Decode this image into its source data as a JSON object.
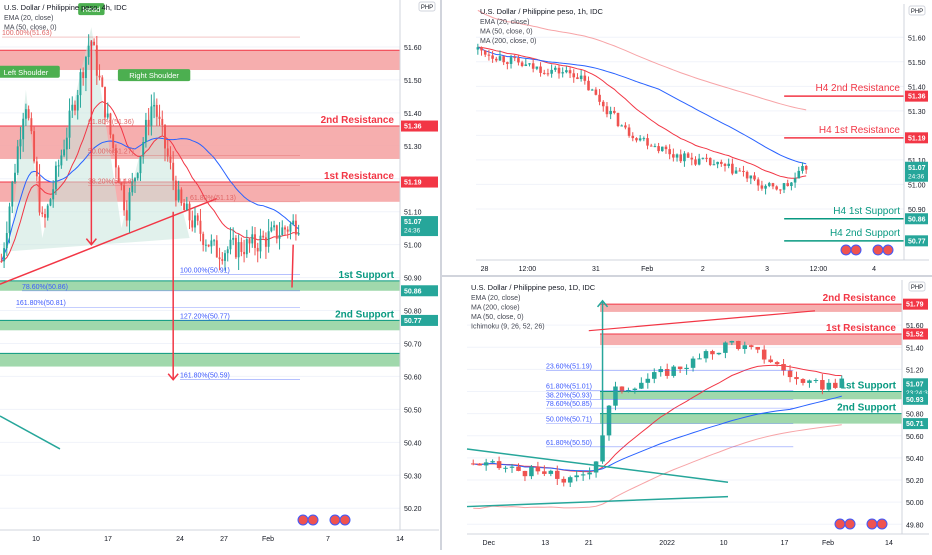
{
  "colors": {
    "up": "#26a69a",
    "down": "#ef5350",
    "ema": "#f23645",
    "ma200": "#f7a4a7",
    "ma50": "#2962ff",
    "resistance_fill": "#f4a0a0",
    "support_fill": "#8fd19e",
    "level_resistance": "#f23645",
    "level_support": "#089981",
    "grid": "#f0f3fa",
    "axis_text": "#131722",
    "fib_red": "#e06666",
    "fib_blue": "#3d5afe",
    "pattern_fill": "#c8e6dc",
    "arrow": "#f23645",
    "label_green": "#4caf50",
    "divider": "#d1d4dc"
  },
  "chart_data": [
    {
      "id": "h4",
      "type": "candlestick",
      "title": "U.S. Dollar / Philippine peso, 4h, IDC",
      "indicators": [
        "EMA (20, close)",
        "MA (50, close, 0)"
      ],
      "price_axis_label": "PHP",
      "ylim": [
        50.14,
        51.7
      ],
      "y_ticks": [
        "51.60",
        "51.50",
        "51.40",
        "51.30",
        "51.20",
        "51.10",
        "51.00",
        "50.90",
        "50.80",
        "50.70",
        "50.60",
        "50.50",
        "50.40",
        "50.30",
        "50.20"
      ],
      "x_ticks": [
        "10",
        "17",
        "24",
        "27",
        "Feb",
        "7",
        "14"
      ],
      "price_badges": [
        {
          "value": "51.36",
          "type": "resistance"
        },
        {
          "value": "51.19",
          "type": "resistance"
        },
        {
          "value": "51.07",
          "sub": "24:36",
          "type": "last"
        },
        {
          "value": "50.86",
          "type": "support"
        },
        {
          "value": "50.77",
          "type": "support"
        }
      ],
      "zones": [
        {
          "type": "resistance",
          "from": 51.53,
          "to": 51.59
        },
        {
          "type": "resistance",
          "from": 51.26,
          "to": 51.36,
          "label": "2nd Resistance"
        },
        {
          "type": "resistance",
          "from": 51.13,
          "to": 51.19,
          "label": "1st Resistance"
        },
        {
          "type": "support",
          "from": 50.86,
          "to": 50.89,
          "label": "1st Support"
        },
        {
          "type": "support",
          "from": 50.74,
          "to": 50.77,
          "label": "2nd Support"
        },
        {
          "type": "support",
          "from": 50.63,
          "to": 50.67
        }
      ],
      "pattern_labels": [
        "Head",
        "Left Shoulder",
        "Right Shoulder"
      ],
      "fib_levels": [
        {
          "label": "100.00%(51.63)",
          "color": "red"
        },
        {
          "label": "61.80%(51.36)",
          "color": "red"
        },
        {
          "label": "50.00%(51.27)",
          "color": "red"
        },
        {
          "label": "38.20%(51.18)",
          "color": "red"
        },
        {
          "label": "61.80%(51.13)",
          "color": "red"
        },
        {
          "label": "100.00%(50.91)",
          "color": "blue"
        },
        {
          "label": "78.60%(50.86)",
          "color": "blue"
        },
        {
          "label": "161.80%(50.81)",
          "color": "blue"
        },
        {
          "label": "127.20%(50.77)",
          "color": "blue"
        },
        {
          "label": "161.80%(50.59)",
          "color": "blue"
        }
      ]
    },
    {
      "id": "h1",
      "type": "candlestick",
      "title": "U.S. Dollar / Philippine peso, 1h, IDC",
      "indicators": [
        "EMA (20, close)",
        "MA (50, close, 0)",
        "MA (200, close, 0)"
      ],
      "price_axis_label": "PHP",
      "ylim": [
        50.7,
        51.65
      ],
      "y_ticks": [
        "51.60",
        "51.50",
        "51.40",
        "51.30",
        "51.20",
        "51.10",
        "51.00",
        "50.90"
      ],
      "x_ticks": [
        "28",
        "12:00",
        "31",
        "Feb",
        "2",
        "3",
        "12:00",
        "4"
      ],
      "price_badges": [
        {
          "value": "51.36",
          "type": "resistance"
        },
        {
          "value": "51.19",
          "type": "resistance"
        },
        {
          "value": "51.07",
          "sub": "24:36",
          "type": "last"
        },
        {
          "value": "50.86",
          "type": "support"
        },
        {
          "value": "50.77",
          "type": "support"
        }
      ],
      "levels": [
        {
          "label": "H4 2nd Resistance",
          "value": 51.36,
          "type": "resistance"
        },
        {
          "label": "H4 1st Resistance",
          "value": 51.19,
          "type": "resistance"
        },
        {
          "label": "H4 1st Support",
          "value": 50.86,
          "type": "support"
        },
        {
          "label": "H4 2nd Support",
          "value": 50.77,
          "type": "support"
        }
      ]
    },
    {
      "id": "d1",
      "type": "candlestick",
      "title": "U.S. Dollar / Philippine peso, 1D, IDC",
      "indicators": [
        "EMA (20, close)",
        "MA (200, close)",
        "MA (50, close, 0)",
        "Ichimoku (9, 26, 52, 26)"
      ],
      "price_axis_label": "PHP",
      "ylim": [
        49.73,
        51.9
      ],
      "y_ticks": [
        "51.60",
        "51.40",
        "51.20",
        "51.00",
        "50.80",
        "50.60",
        "50.40",
        "50.20",
        "50.00",
        "49.80"
      ],
      "x_ticks": [
        "Dec",
        "13",
        "21",
        "2022",
        "10",
        "17",
        "Feb",
        "14"
      ],
      "price_badges": [
        {
          "value": "51.79",
          "type": "resistance"
        },
        {
          "value": "51.52",
          "type": "resistance"
        },
        {
          "value": "51.07",
          "sub": "23:24:36",
          "type": "last"
        },
        {
          "value": "50.93",
          "type": "support"
        },
        {
          "value": "50.71",
          "type": "support"
        }
      ],
      "zones": [
        {
          "type": "resistance",
          "from": 51.72,
          "to": 51.79,
          "label": "2nd Resistance"
        },
        {
          "type": "resistance",
          "from": 51.42,
          "to": 51.52,
          "label": "1st Resistance"
        },
        {
          "type": "support",
          "from": 50.93,
          "to": 51.0,
          "label": "1st Support"
        },
        {
          "type": "support",
          "from": 50.71,
          "to": 50.8,
          "label": "2nd Support"
        }
      ],
      "fib_levels": [
        {
          "label": "23.60%(51.19)",
          "color": "blue"
        },
        {
          "label": "61.80%(51.01)",
          "color": "blue"
        },
        {
          "label": "38.20%(50.93)",
          "color": "blue"
        },
        {
          "label": "78.60%(50.85)",
          "color": "blue"
        },
        {
          "label": "50.00%(50.71)",
          "color": "blue"
        },
        {
          "label": "61.80%(50.50)",
          "color": "blue"
        }
      ]
    }
  ]
}
